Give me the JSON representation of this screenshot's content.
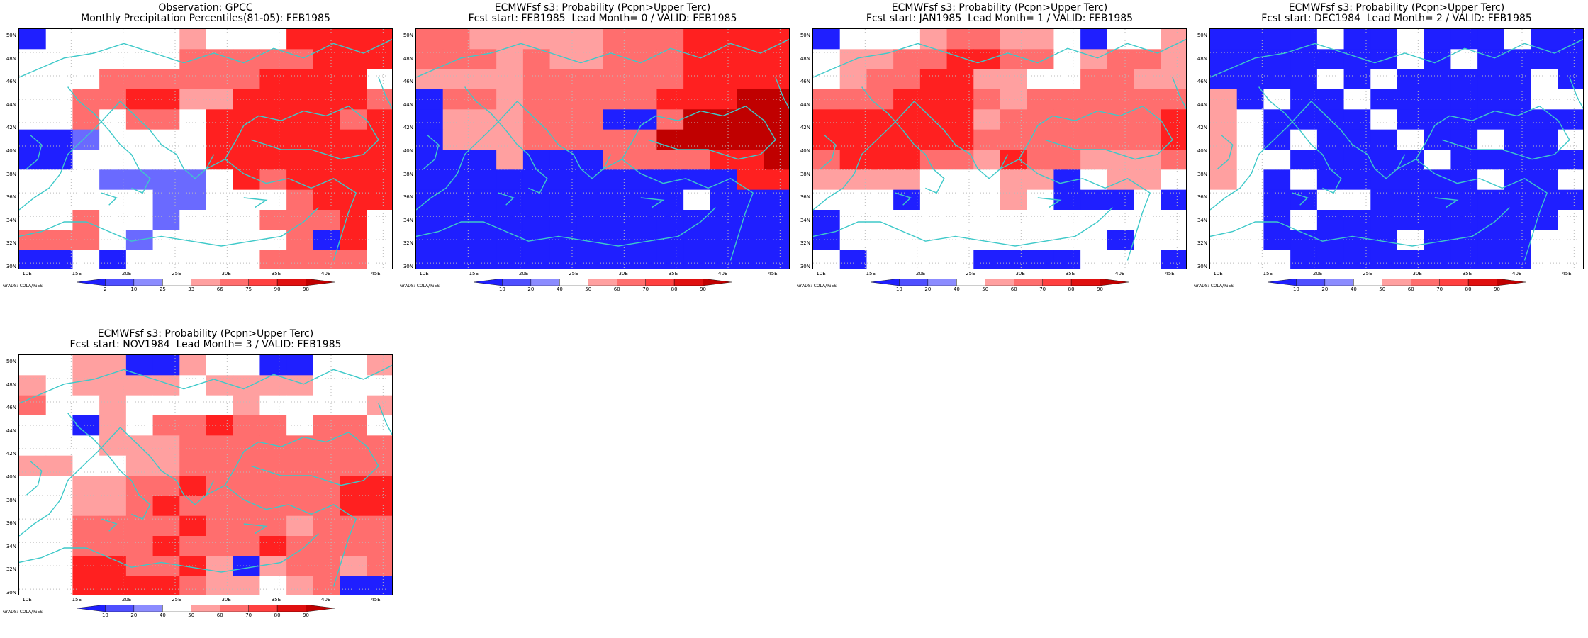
{
  "credit": "GrADS: COLA/IGES",
  "lat_labels": [
    "50N",
    "48N",
    "46N",
    "44N",
    "42N",
    "40N",
    "38N",
    "36N",
    "34N",
    "32N",
    "30N"
  ],
  "lon_labels": [
    "10E",
    "15E",
    "20E",
    "25E",
    "30E",
    "35E",
    "40E",
    "45E"
  ],
  "colors": {
    "coast": "#3ec9c9",
    "grid": "#bbbbbb",
    "dark_blue": "#1f1fff",
    "mid_blue": "#6a6aff",
    "light_blue": "#a8a8ff",
    "white": "#ffffff",
    "light_red": "#ffa0a0",
    "mid_red": "#ff6e6e",
    "red": "#ff2020",
    "dark_red": "#e01010",
    "darker_red": "#c00000"
  },
  "panels": [
    {
      "id": "obs",
      "title_line1": "Observation: GPCC",
      "title_line2": "Monthly Precipitation Percentiles(81-05): FEB1985",
      "colorbar_labels": [
        "2",
        "10",
        "25",
        "33",
        "66",
        "75",
        "90",
        "98"
      ],
      "grid": [
        "B.....L...RRRR",
        "......MMMMMRRR",
        "...MMMMMMRRRR.",
        "..MMRRLLRRRRRM",
        "..M.MM.RRRRRMR",
        "BBb....RRRRRRR",
        "BB.....RRRRRRR",
        "...bbbb.RMRRRR",
        ".....bb...MRRR",
        "..M..b...MMMR.",
        "MMM.b.....MBR.",
        "BB.B.....MMMM."
      ]
    },
    {
      "id": "lead0",
      "title_line1": "ECMWFsf s3: Probability (Pcpn>Upper Terc)",
      "title_line2": "Fcst start: FEB1985  Lead Month= 0 / VALID: FEB1985",
      "colorbar_labels": [
        "10",
        "20",
        "40",
        "50",
        "60",
        "70",
        "80",
        "90"
      ],
      "grid": [
        "MMLLLLLMMMRRRR",
        "MMMLMLLMMMRRRR",
        "LLLLMMMMMMRRRR",
        "BMMLMMMMMRRRDD",
        "BLLLMMMBBMDDDD",
        "BLLLMMMMMDDDDD",
        "BBBLBBBMMMMRRD",
        "BBBBBBBBBBBBRR",
        "BBBBBBBBBB.BBB",
        "BBBBBBBBBBBBBB",
        "BBBBBBBBBBBBBB",
        "BBBBBBBBBBBBBB"
      ]
    },
    {
      "id": "lead1",
      "title_line1": "ECMWFsf s3: Probability (Pcpn>Upper Terc)",
      "title_line2": "Fcst start: JAN1985  Lead Month= 1 / VALID: FEB1985",
      "colorbar_labels": [
        "10",
        "20",
        "40",
        "50",
        "60",
        "70",
        "80",
        "90"
      ],
      "grid": [
        "B...LMMLL.B..L",
        ".LLMMRRMM.LMML",
        ".LMMRRLL..MMLL",
        "MMMRRRMLMMMMMM",
        "RRRRRRLMMMMMMR",
        "RRRRRRMMMMMMMR",
        "MRRRMMLRMMLLLM",
        "LLLL...LLB.LL.",
        "...B...L.BBB.B",
        "B.............",
        "B..........B..",
        ".B....BBBB...B"
      ]
    },
    {
      "id": "lead2",
      "title_line1": "ECMWFsf s3: Probability (Pcpn>Upper Terc)",
      "title_line2": "Fcst start: DEC1984  Lead Month= 2 / VALID: FEB1985",
      "colorbar_labels": [
        "10",
        "20",
        "40",
        "50",
        "60",
        "70",
        "80",
        "90"
      ],
      "grid": [
        "BBBB.BB.BBB.BB",
        "BBBBBBB.B.BBBB",
        "BBBB.B.BBBBB.B",
        "LB.BB.BBBBBB..",
        "L.BBBB.BBBBBBB",
        "L.B.BBB.BB.BB.",
        "L..BBBBB.BBBBB",
        "L.B.BBBBBB.BB.",
        "..BB..BBBBBBBB",
        "..B.BBBBBBBBB.",
        "..BBBBB.BBBB..",
        "...BBBBBBBBB.."
      ]
    },
    {
      "id": "lead3",
      "title_line1": "ECMWFsf s3: Probability (Pcpn>Upper Terc)",
      "title_line2": "Fcst start: NOV1984  Lead Month= 3 / VALID: FEB1985",
      "colorbar_labels": [
        "10",
        "20",
        "40",
        "50",
        "60",
        "70",
        "80",
        "90"
      ],
      "grid": [
        "..LLBBL..BB..L",
        "L.LLLL.LLLL...",
        "M..L....L....L",
        "..BL.MMRMM.MM.",
        "...LLLMMMMMMMM",
        "LL..LLMMMMMMMM",
        "..LLMMRMMMMMRR",
        "..LLMRMMMMMMRR",
        "..MMMMRMMMLMMM",
        "..MMMRMMMRMMMM",
        "..RRMMRLBLMMLM",
        "..RRRRMLL.LMBB"
      ]
    }
  ]
}
